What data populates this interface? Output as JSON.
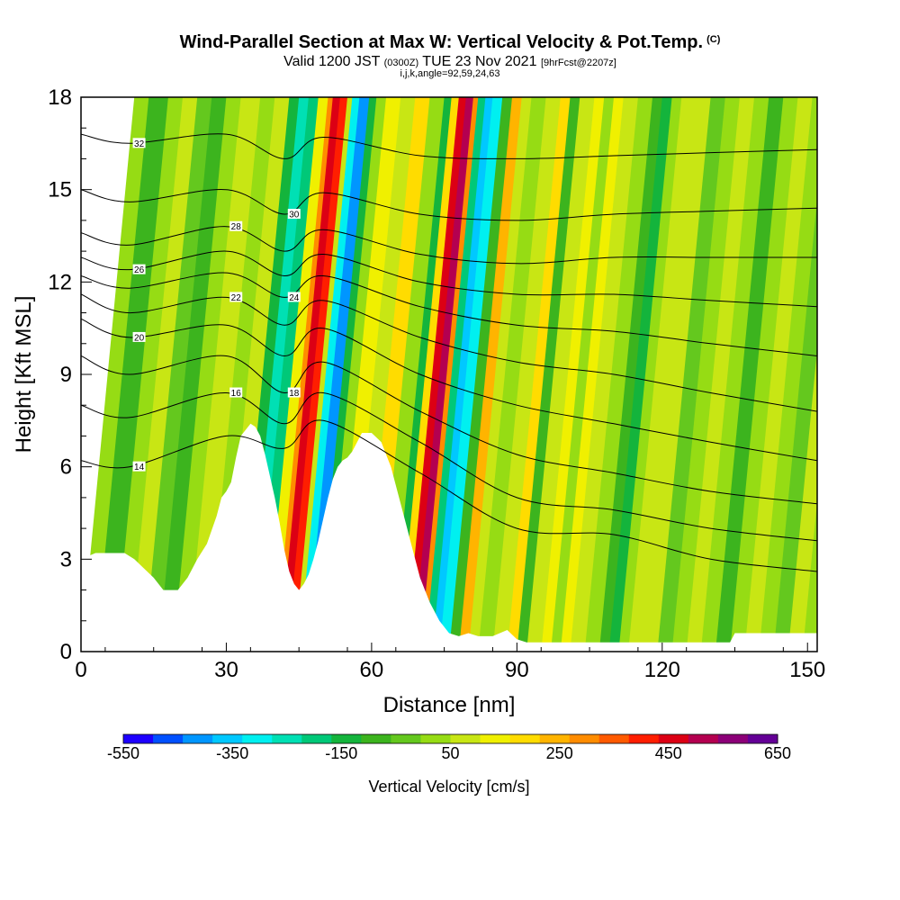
{
  "header": {
    "title_main": "Wind-Parallel Section at Max W: Vertical Velocity & Pot.Temp.",
    "title_mark": "(C)",
    "valid_prefix": "Valid 1200 JST",
    "valid_utc": "(0300Z)",
    "valid_date": "TUE 23 Nov 2021",
    "valid_fcst": "[9hrFcst@2207z]",
    "params": "i,j,k,angle=92,59,24,63"
  },
  "colors": {
    "palette": [
      "#1e00ff",
      "#0050ff",
      "#0096ff",
      "#00c8ff",
      "#00f0f0",
      "#00e0b4",
      "#00c878",
      "#14b43c",
      "#3cb41e",
      "#64c81e",
      "#96dc14",
      "#c8e614",
      "#f0f000",
      "#ffdc00",
      "#ffb400",
      "#ff8c00",
      "#ff5a00",
      "#ff1e00",
      "#dc0014",
      "#b40050",
      "#8c0078",
      "#640096"
    ],
    "terrain": "#ffffff",
    "contour": "#000000"
  },
  "chart_data": {
    "type": "heatmap",
    "xlabel": "Distance [nm]",
    "ylabel": "Height [Kft MSL]",
    "x_range": [
      0,
      152
    ],
    "y_range": [
      0,
      18
    ],
    "x_ticks": [
      0,
      30,
      60,
      90,
      120,
      150
    ],
    "y_ticks": [
      0,
      3,
      6,
      9,
      12,
      15,
      18
    ],
    "colorbar": {
      "label": "Vertical Velocity [cm/s]",
      "min": -550,
      "max": 650,
      "tick_labels": [
        "-550",
        "-350",
        "-150",
        "50",
        "250",
        "450",
        "650"
      ],
      "tick_values": [
        -550,
        -350,
        -150,
        50,
        250,
        450,
        650
      ]
    },
    "terrain_profile": {
      "x": [
        0,
        3,
        9,
        11,
        13,
        15,
        17,
        20,
        22,
        24,
        26,
        28,
        29,
        30,
        31,
        32,
        33,
        35,
        36,
        37,
        38,
        39,
        40,
        41,
        42,
        43,
        44,
        45,
        46,
        47,
        48,
        49,
        50,
        51,
        52,
        53,
        54,
        55,
        56,
        57,
        58,
        60,
        62,
        63,
        64,
        65,
        66,
        67,
        68,
        69,
        70,
        72,
        74,
        76,
        78,
        80,
        82,
        85,
        88,
        90,
        92,
        100,
        120,
        134,
        135,
        140,
        150,
        152
      ],
      "y": [
        3.0,
        3.2,
        3.2,
        3.0,
        2.7,
        2.4,
        2.0,
        2.0,
        2.4,
        3.0,
        3.5,
        4.4,
        5.0,
        5.2,
        5.5,
        6.3,
        7.0,
        7.4,
        7.3,
        7.0,
        6.4,
        5.7,
        5.0,
        4.2,
        3.3,
        2.6,
        2.2,
        2.0,
        2.2,
        2.5,
        3.0,
        3.6,
        4.3,
        5.0,
        5.6,
        6.0,
        6.2,
        6.3,
        6.5,
        6.8,
        7.1,
        7.1,
        6.8,
        6.4,
        6.0,
        5.4,
        4.8,
        4.2,
        3.6,
        3.0,
        2.4,
        1.6,
        1.0,
        0.6,
        0.5,
        0.6,
        0.5,
        0.5,
        0.7,
        0.4,
        0.3,
        0.3,
        0.3,
        0.3,
        0.6,
        0.6,
        0.6,
        0.6
      ]
    },
    "vertical_velocity_columns": [
      {
        "x": [
          0,
          3
        ],
        "value": 0
      },
      {
        "x": [
          3,
          7
        ],
        "value": -80
      },
      {
        "x": [
          7,
          10
        ],
        "value": 30
      },
      {
        "x": [
          10,
          13
        ],
        "value": 50
      },
      {
        "x": [
          13,
          16
        ],
        "value": -40
      },
      {
        "x": [
          16,
          19
        ],
        "value": -90
      },
      {
        "x": [
          19,
          22
        ],
        "value": 20
      },
      {
        "x": [
          22,
          26
        ],
        "value": 60
      },
      {
        "x": [
          26,
          29
        ],
        "value": 10
      },
      {
        "x": [
          29,
          32
        ],
        "value": 90
      },
      {
        "x": [
          32,
          34
        ],
        "value": -150
      },
      {
        "x": [
          34,
          36
        ],
        "value": -250
      },
      {
        "x": [
          36,
          38
        ],
        "value": -180
      },
      {
        "x": [
          38,
          40
        ],
        "value": 120
      },
      {
        "x": [
          40,
          41
        ],
        "value": 300
      },
      {
        "x": [
          41,
          42.5
        ],
        "value": 480
      },
      {
        "x": [
          42.5,
          44
        ],
        "value": 400
      },
      {
        "x": [
          44,
          45
        ],
        "value": 100
      },
      {
        "x": [
          45,
          46.5
        ],
        "value": -300
      },
      {
        "x": [
          46.5,
          48.5
        ],
        "value": -420
      },
      {
        "x": [
          48.5,
          50
        ],
        "value": -150
      },
      {
        "x": [
          50,
          52
        ],
        "value": 40
      },
      {
        "x": [
          52,
          55
        ],
        "value": 140
      },
      {
        "x": [
          55,
          58
        ],
        "value": 60
      },
      {
        "x": [
          58,
          61
        ],
        "value": 170
      },
      {
        "x": [
          61,
          64
        ],
        "value": 20
      },
      {
        "x": [
          64,
          65.5
        ],
        "value": -120
      },
      {
        "x": [
          65.5,
          67
        ],
        "value": 200
      },
      {
        "x": [
          67,
          68.5
        ],
        "value": 450
      },
      {
        "x": [
          68.5,
          70
        ],
        "value": 520
      },
      {
        "x": [
          70,
          71
        ],
        "value": 300
      },
      {
        "x": [
          71,
          72.5
        ],
        "value": -200
      },
      {
        "x": [
          72.5,
          74
        ],
        "value": -380
      },
      {
        "x": [
          74,
          76
        ],
        "value": -300
      },
      {
        "x": [
          76,
          78
        ],
        "value": -60
      },
      {
        "x": [
          78,
          80
        ],
        "value": 260
      },
      {
        "x": [
          80,
          82
        ],
        "value": 80
      },
      {
        "x": [
          82,
          85
        ],
        "value": 0
      },
      {
        "x": [
          85,
          88
        ],
        "value": 100
      },
      {
        "x": [
          88,
          90
        ],
        "value": 200
      },
      {
        "x": [
          90,
          92
        ],
        "value": -60
      },
      {
        "x": [
          92,
          95
        ],
        "value": 60
      },
      {
        "x": [
          95,
          97
        ],
        "value": 150
      },
      {
        "x": [
          97,
          99
        ],
        "value": 40
      },
      {
        "x": [
          99,
          101
        ],
        "value": 110
      },
      {
        "x": [
          101,
          104
        ],
        "value": 60
      },
      {
        "x": [
          104,
          107
        ],
        "value": 0
      },
      {
        "x": [
          107,
          109
        ],
        "value": -80
      },
      {
        "x": [
          109,
          111
        ],
        "value": -150
      },
      {
        "x": [
          111,
          113
        ],
        "value": 40
      },
      {
        "x": [
          113,
          116
        ],
        "value": 80
      },
      {
        "x": [
          116,
          119
        ],
        "value": 50
      },
      {
        "x": [
          119,
          122
        ],
        "value": -40
      },
      {
        "x": [
          122,
          125
        ],
        "value": 20
      },
      {
        "x": [
          125,
          128
        ],
        "value": 90
      },
      {
        "x": [
          128,
          131
        ],
        "value": 10
      },
      {
        "x": [
          131,
          134
        ],
        "value": -60
      },
      {
        "x": [
          134,
          137
        ],
        "value": 40
      },
      {
        "x": [
          137,
          140
        ],
        "value": 90
      },
      {
        "x": [
          140,
          143
        ],
        "value": 20
      },
      {
        "x": [
          143,
          146
        ],
        "value": -30
      },
      {
        "x": [
          146,
          149
        ],
        "value": 50
      },
      {
        "x": [
          149,
          152
        ],
        "value": 20
      }
    ],
    "theta_contours": [
      {
        "label": "14",
        "anchors": [
          [
            0,
            6.2
          ],
          [
            10,
            6.0
          ],
          [
            30,
            7.0
          ],
          [
            42,
            6.6
          ],
          [
            50,
            7.5
          ],
          [
            70,
            5.8
          ],
          [
            90,
            4.0
          ],
          [
            110,
            3.8
          ],
          [
            130,
            3.0
          ],
          [
            152,
            2.6
          ]
        ]
      },
      {
        "label": "16",
        "anchors": [
          [
            0,
            8.0
          ],
          [
            10,
            7.6
          ],
          [
            30,
            8.4
          ],
          [
            42,
            7.4
          ],
          [
            50,
            8.4
          ],
          [
            70,
            6.8
          ],
          [
            90,
            5.0
          ],
          [
            110,
            4.6
          ],
          [
            130,
            4.0
          ],
          [
            152,
            3.6
          ]
        ]
      },
      {
        "label": "18",
        "anchors": [
          [
            0,
            9.6
          ],
          [
            10,
            9.0
          ],
          [
            30,
            9.6
          ],
          [
            42,
            8.4
          ],
          [
            50,
            9.4
          ],
          [
            70,
            7.8
          ],
          [
            90,
            6.4
          ],
          [
            110,
            5.8
          ],
          [
            130,
            5.2
          ],
          [
            152,
            4.8
          ]
        ]
      },
      {
        "label": "20",
        "anchors": [
          [
            0,
            10.8
          ],
          [
            10,
            10.2
          ],
          [
            30,
            10.6
          ],
          [
            42,
            9.6
          ],
          [
            50,
            10.5
          ],
          [
            70,
            9.0
          ],
          [
            90,
            8.0
          ],
          [
            110,
            7.4
          ],
          [
            130,
            6.8
          ],
          [
            152,
            6.2
          ]
        ]
      },
      {
        "label": "22",
        "anchors": [
          [
            0,
            11.6
          ],
          [
            10,
            11.0
          ],
          [
            30,
            11.5
          ],
          [
            42,
            10.6
          ],
          [
            50,
            11.4
          ],
          [
            70,
            10.2
          ],
          [
            90,
            9.4
          ],
          [
            110,
            9.0
          ],
          [
            130,
            8.4
          ],
          [
            152,
            7.8
          ]
        ]
      },
      {
        "label": "24",
        "anchors": [
          [
            0,
            12.2
          ],
          [
            10,
            11.8
          ],
          [
            30,
            12.3
          ],
          [
            42,
            11.5
          ],
          [
            50,
            12.2
          ],
          [
            70,
            11.2
          ],
          [
            90,
            10.6
          ],
          [
            110,
            10.4
          ],
          [
            130,
            10.0
          ],
          [
            152,
            9.6
          ]
        ]
      },
      {
        "label": "26",
        "anchors": [
          [
            0,
            12.8
          ],
          [
            10,
            12.4
          ],
          [
            30,
            13.0
          ],
          [
            42,
            12.2
          ],
          [
            50,
            12.9
          ],
          [
            70,
            12.0
          ],
          [
            90,
            11.6
          ],
          [
            110,
            11.6
          ],
          [
            130,
            11.4
          ],
          [
            152,
            11.2
          ]
        ]
      },
      {
        "label": "28",
        "anchors": [
          [
            0,
            13.6
          ],
          [
            10,
            13.2
          ],
          [
            30,
            13.8
          ],
          [
            42,
            13.0
          ],
          [
            50,
            13.7
          ],
          [
            70,
            12.9
          ],
          [
            90,
            12.6
          ],
          [
            110,
            12.8
          ],
          [
            130,
            12.8
          ],
          [
            152,
            12.8
          ]
        ]
      },
      {
        "label": "30",
        "anchors": [
          [
            0,
            15.0
          ],
          [
            10,
            14.6
          ],
          [
            30,
            15.0
          ],
          [
            42,
            14.2
          ],
          [
            50,
            14.9
          ],
          [
            70,
            14.2
          ],
          [
            90,
            14.0
          ],
          [
            110,
            14.2
          ],
          [
            130,
            14.3
          ],
          [
            152,
            14.4
          ]
        ]
      },
      {
        "label": "32",
        "anchors": [
          [
            0,
            16.8
          ],
          [
            10,
            16.5
          ],
          [
            30,
            16.8
          ],
          [
            42,
            16.0
          ],
          [
            50,
            16.7
          ],
          [
            70,
            16.1
          ],
          [
            90,
            16.0
          ],
          [
            110,
            16.1
          ],
          [
            130,
            16.2
          ],
          [
            152,
            16.3
          ]
        ]
      }
    ]
  }
}
